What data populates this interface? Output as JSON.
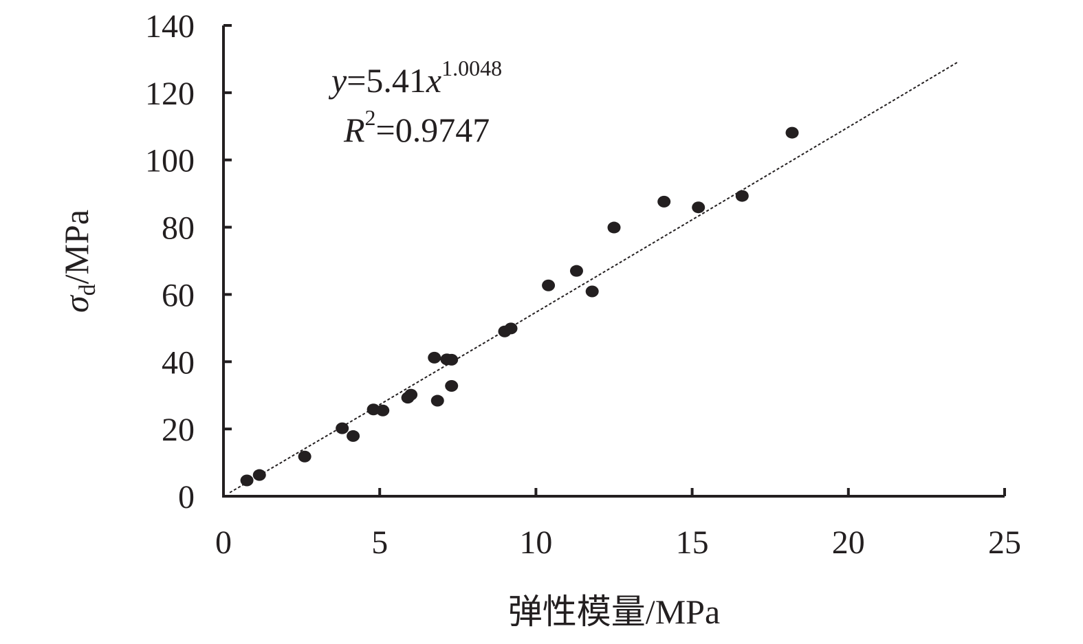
{
  "chart_data": {
    "type": "scatter",
    "xlabel": "弹性模量/MPa",
    "ylabel": {
      "symbol": "σ",
      "sub": "d",
      "unit": "/MPa"
    },
    "xlim": [
      0,
      25
    ],
    "ylim": [
      0,
      140
    ],
    "xticks": [
      0,
      5,
      10,
      15,
      20,
      25
    ],
    "yticks": [
      0,
      20,
      40,
      60,
      80,
      100,
      120,
      140
    ],
    "grid": false,
    "legend": "none",
    "points": [
      [
        0.75,
        4.7
      ],
      [
        1.15,
        6.3
      ],
      [
        2.6,
        11.8
      ],
      [
        3.8,
        20.2
      ],
      [
        4.15,
        17.9
      ],
      [
        4.8,
        25.8
      ],
      [
        5.1,
        25.5
      ],
      [
        5.9,
        29.3
      ],
      [
        6.0,
        30.2
      ],
      [
        6.75,
        41.2
      ],
      [
        6.85,
        28.4
      ],
      [
        7.15,
        40.7
      ],
      [
        7.3,
        40.6
      ],
      [
        7.3,
        32.8
      ],
      [
        9.0,
        49.0
      ],
      [
        9.2,
        49.9
      ],
      [
        10.4,
        62.7
      ],
      [
        11.3,
        67.0
      ],
      [
        11.8,
        60.9
      ],
      [
        12.5,
        79.9
      ],
      [
        14.1,
        87.6
      ],
      [
        15.2,
        85.9
      ],
      [
        16.6,
        89.3
      ],
      [
        18.2,
        108.1
      ]
    ],
    "trendline": {
      "type": "power",
      "a": 5.41,
      "b": 1.0048,
      "x_range": [
        0.2,
        23.5
      ],
      "style": "dotted"
    },
    "annotation": {
      "equation": {
        "y": "y",
        "rhs": "=5.41",
        "x": "x",
        "exp": "1.0048"
      },
      "r2": {
        "R": "R",
        "sup": "2",
        "rhs": "=0.9747"
      }
    },
    "colors": {
      "axis": "#231f20",
      "point": "#231f20",
      "trendline": "#231f20"
    }
  }
}
